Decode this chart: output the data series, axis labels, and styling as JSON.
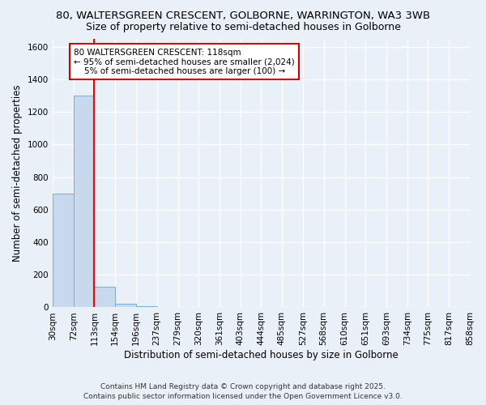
{
  "title_line1": "80, WALTERSGREEN CRESCENT, GOLBORNE, WARRINGTON, WA3 3WB",
  "title_line2": "Size of property relative to semi-detached houses in Golborne",
  "xlabel": "Distribution of semi-detached houses by size in Golborne",
  "ylabel": "Number of semi-detached properties",
  "bar_left_edges": [
    30,
    72,
    113,
    154,
    196,
    237,
    279,
    320,
    361,
    403,
    444,
    485,
    527,
    568,
    610,
    651,
    693,
    734,
    775,
    817
  ],
  "bar_widths": [
    42,
    41,
    41,
    42,
    41,
    42,
    41,
    41,
    42,
    41,
    41,
    42,
    41,
    42,
    41,
    42,
    41,
    41,
    42,
    41
  ],
  "bar_heights": [
    700,
    1300,
    125,
    20,
    5,
    0,
    0,
    0,
    0,
    0,
    0,
    0,
    0,
    0,
    0,
    0,
    0,
    0,
    0,
    0
  ],
  "bar_color": "#c8d9ed",
  "bar_edge_color": "#7aadd4",
  "red_line_x": 113,
  "annotation_text": "80 WALTERSGREEN CRESCENT: 118sqm\n← 95% of semi-detached houses are smaller (2,024)\n    5% of semi-detached houses are larger (100) →",
  "annotation_box_facecolor": "#ffffff",
  "annotation_box_edgecolor": "#cc0000",
  "ylim": [
    0,
    1650
  ],
  "yticks": [
    0,
    200,
    400,
    600,
    800,
    1000,
    1200,
    1400,
    1600
  ],
  "xlim_left": 30,
  "xlim_right": 858,
  "xtick_values": [
    30,
    72,
    113,
    154,
    196,
    237,
    279,
    320,
    361,
    403,
    444,
    485,
    527,
    568,
    610,
    651,
    693,
    734,
    775,
    817,
    858
  ],
  "background_color": "#eaf0f8",
  "grid_color": "#ffffff",
  "footer_line1": "Contains HM Land Registry data © Crown copyright and database right 2025.",
  "footer_line2": "Contains public sector information licensed under the Open Government Licence v3.0.",
  "title_fontsize": 9.5,
  "subtitle_fontsize": 9,
  "axis_label_fontsize": 8.5,
  "tick_fontsize": 7.5,
  "annotation_fontsize": 7.5,
  "footer_fontsize": 6.5
}
